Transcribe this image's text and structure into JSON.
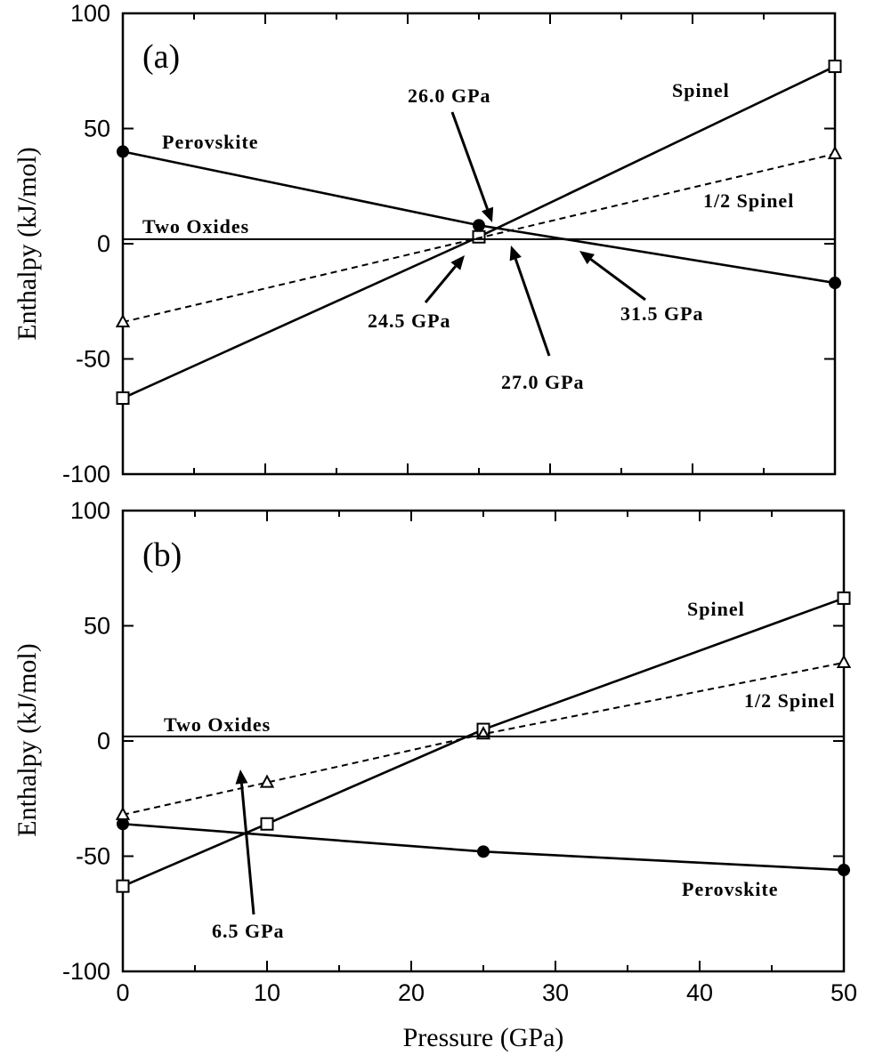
{
  "chart_data": [
    {
      "panel": "(a)",
      "type": "line",
      "xlabel": "",
      "ylabel": "Enthalpy (kJ/mol)",
      "xlim": [
        0,
        50
      ],
      "ylim": [
        -100,
        100
      ],
      "y_ticks": [
        "100",
        "50",
        "0",
        "-50",
        "-100"
      ],
      "series": [
        {
          "name": "Perovskite",
          "style": "solid",
          "marker": "filled-circle",
          "points": [
            [
              0,
              40
            ],
            [
              25,
              8
            ],
            [
              50,
              -17
            ]
          ]
        },
        {
          "name": "Spinel",
          "style": "solid",
          "marker": "open-square",
          "points": [
            [
              0,
              -67
            ],
            [
              25,
              3
            ],
            [
              50,
              77
            ]
          ]
        },
        {
          "name": "1/2 Spinel",
          "style": "dashed",
          "marker": "open-triangle",
          "points": [
            [
              0,
              -34
            ],
            [
              50,
              39
            ]
          ]
        },
        {
          "name": "Two Oxides",
          "style": "solid-thin",
          "marker": "none",
          "points": [
            [
              0,
              2
            ],
            [
              50,
              2
            ]
          ]
        }
      ],
      "annotations": [
        {
          "text": "26.0 GPa",
          "x": 26.0
        },
        {
          "text": "24.5 GPa",
          "x": 24.5
        },
        {
          "text": "27.0 GPa",
          "x": 27.0
        },
        {
          "text": "31.5 GPa",
          "x": 31.5
        }
      ]
    },
    {
      "panel": "(b)",
      "type": "line",
      "xlabel": "Pressure (GPa)",
      "ylabel": "Enthalpy (kJ/mol)",
      "xlim": [
        0,
        50
      ],
      "ylim": [
        -100,
        100
      ],
      "x_ticks": [
        "0",
        "10",
        "20",
        "30",
        "40",
        "50"
      ],
      "y_ticks": [
        "100",
        "50",
        "0",
        "-50",
        "-100"
      ],
      "series": [
        {
          "name": "Perovskite",
          "style": "solid",
          "marker": "filled-circle",
          "points": [
            [
              0,
              -36
            ],
            [
              25,
              -48
            ],
            [
              50,
              -56
            ]
          ]
        },
        {
          "name": "Spinel",
          "style": "solid",
          "marker": "open-square",
          "points": [
            [
              0,
              -63
            ],
            [
              10,
              -36
            ],
            [
              25,
              5
            ],
            [
              50,
              62
            ]
          ]
        },
        {
          "name": "1/2 Spinel",
          "style": "dashed",
          "marker": "open-triangle",
          "points": [
            [
              0,
              -32
            ],
            [
              10,
              -18
            ],
            [
              25,
              3
            ],
            [
              50,
              34
            ]
          ]
        },
        {
          "name": "Two Oxides",
          "style": "solid-thin",
          "marker": "none",
          "points": [
            [
              0,
              2
            ],
            [
              50,
              2
            ]
          ]
        }
      ],
      "annotations": [
        {
          "text": "6.5 GPa",
          "x": 6.5
        }
      ]
    }
  ]
}
